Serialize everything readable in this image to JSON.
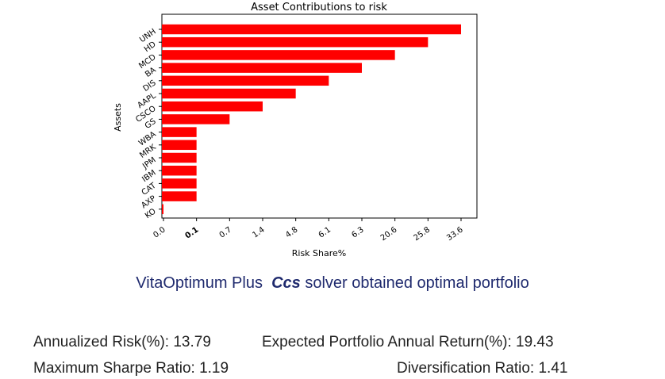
{
  "chart_data": {
    "type": "bar",
    "orientation": "horizontal",
    "title": "Asset Contributions to risk",
    "xlabel": "Risk Share%",
    "ylabel": "Assets",
    "categories": [
      "UNH",
      "HD",
      "MCD",
      "BA",
      "DIS",
      "AAPL",
      "CSCO",
      "GS",
      "WBA",
      "MRK",
      "JPM",
      "IBM",
      "CAT",
      "AXP",
      "KO"
    ],
    "values": [
      33.6,
      25.8,
      20.6,
      6.3,
      6.1,
      4.8,
      1.4,
      0.7,
      0.1,
      0.1,
      0.1,
      0.1,
      0.1,
      0.1,
      0.0
    ],
    "x_tick_labels": [
      "0.0",
      "0.1",
      "0.7",
      "1.4",
      "4.8",
      "6.1",
      "6.3",
      "20.6",
      "25.8",
      "33.6"
    ],
    "bold_tick": "0.1",
    "bar_color": "#ff0000",
    "grid": false,
    "legend": "none"
  },
  "caption": {
    "prefix": "VitaOptimum Plus",
    "solver": "Ccs",
    "suffix": "solver obtained optimal portfolio",
    "color": "#1f2a6e"
  },
  "stats": {
    "annualized_risk": "Annualized Risk(%): 13.79",
    "expected_return": "Expected Portfolio Annual Return(%): 19.43",
    "max_sharpe": "Maximum Sharpe Ratio: 1.19",
    "diversification": "Diversification Ratio: 1.41"
  }
}
